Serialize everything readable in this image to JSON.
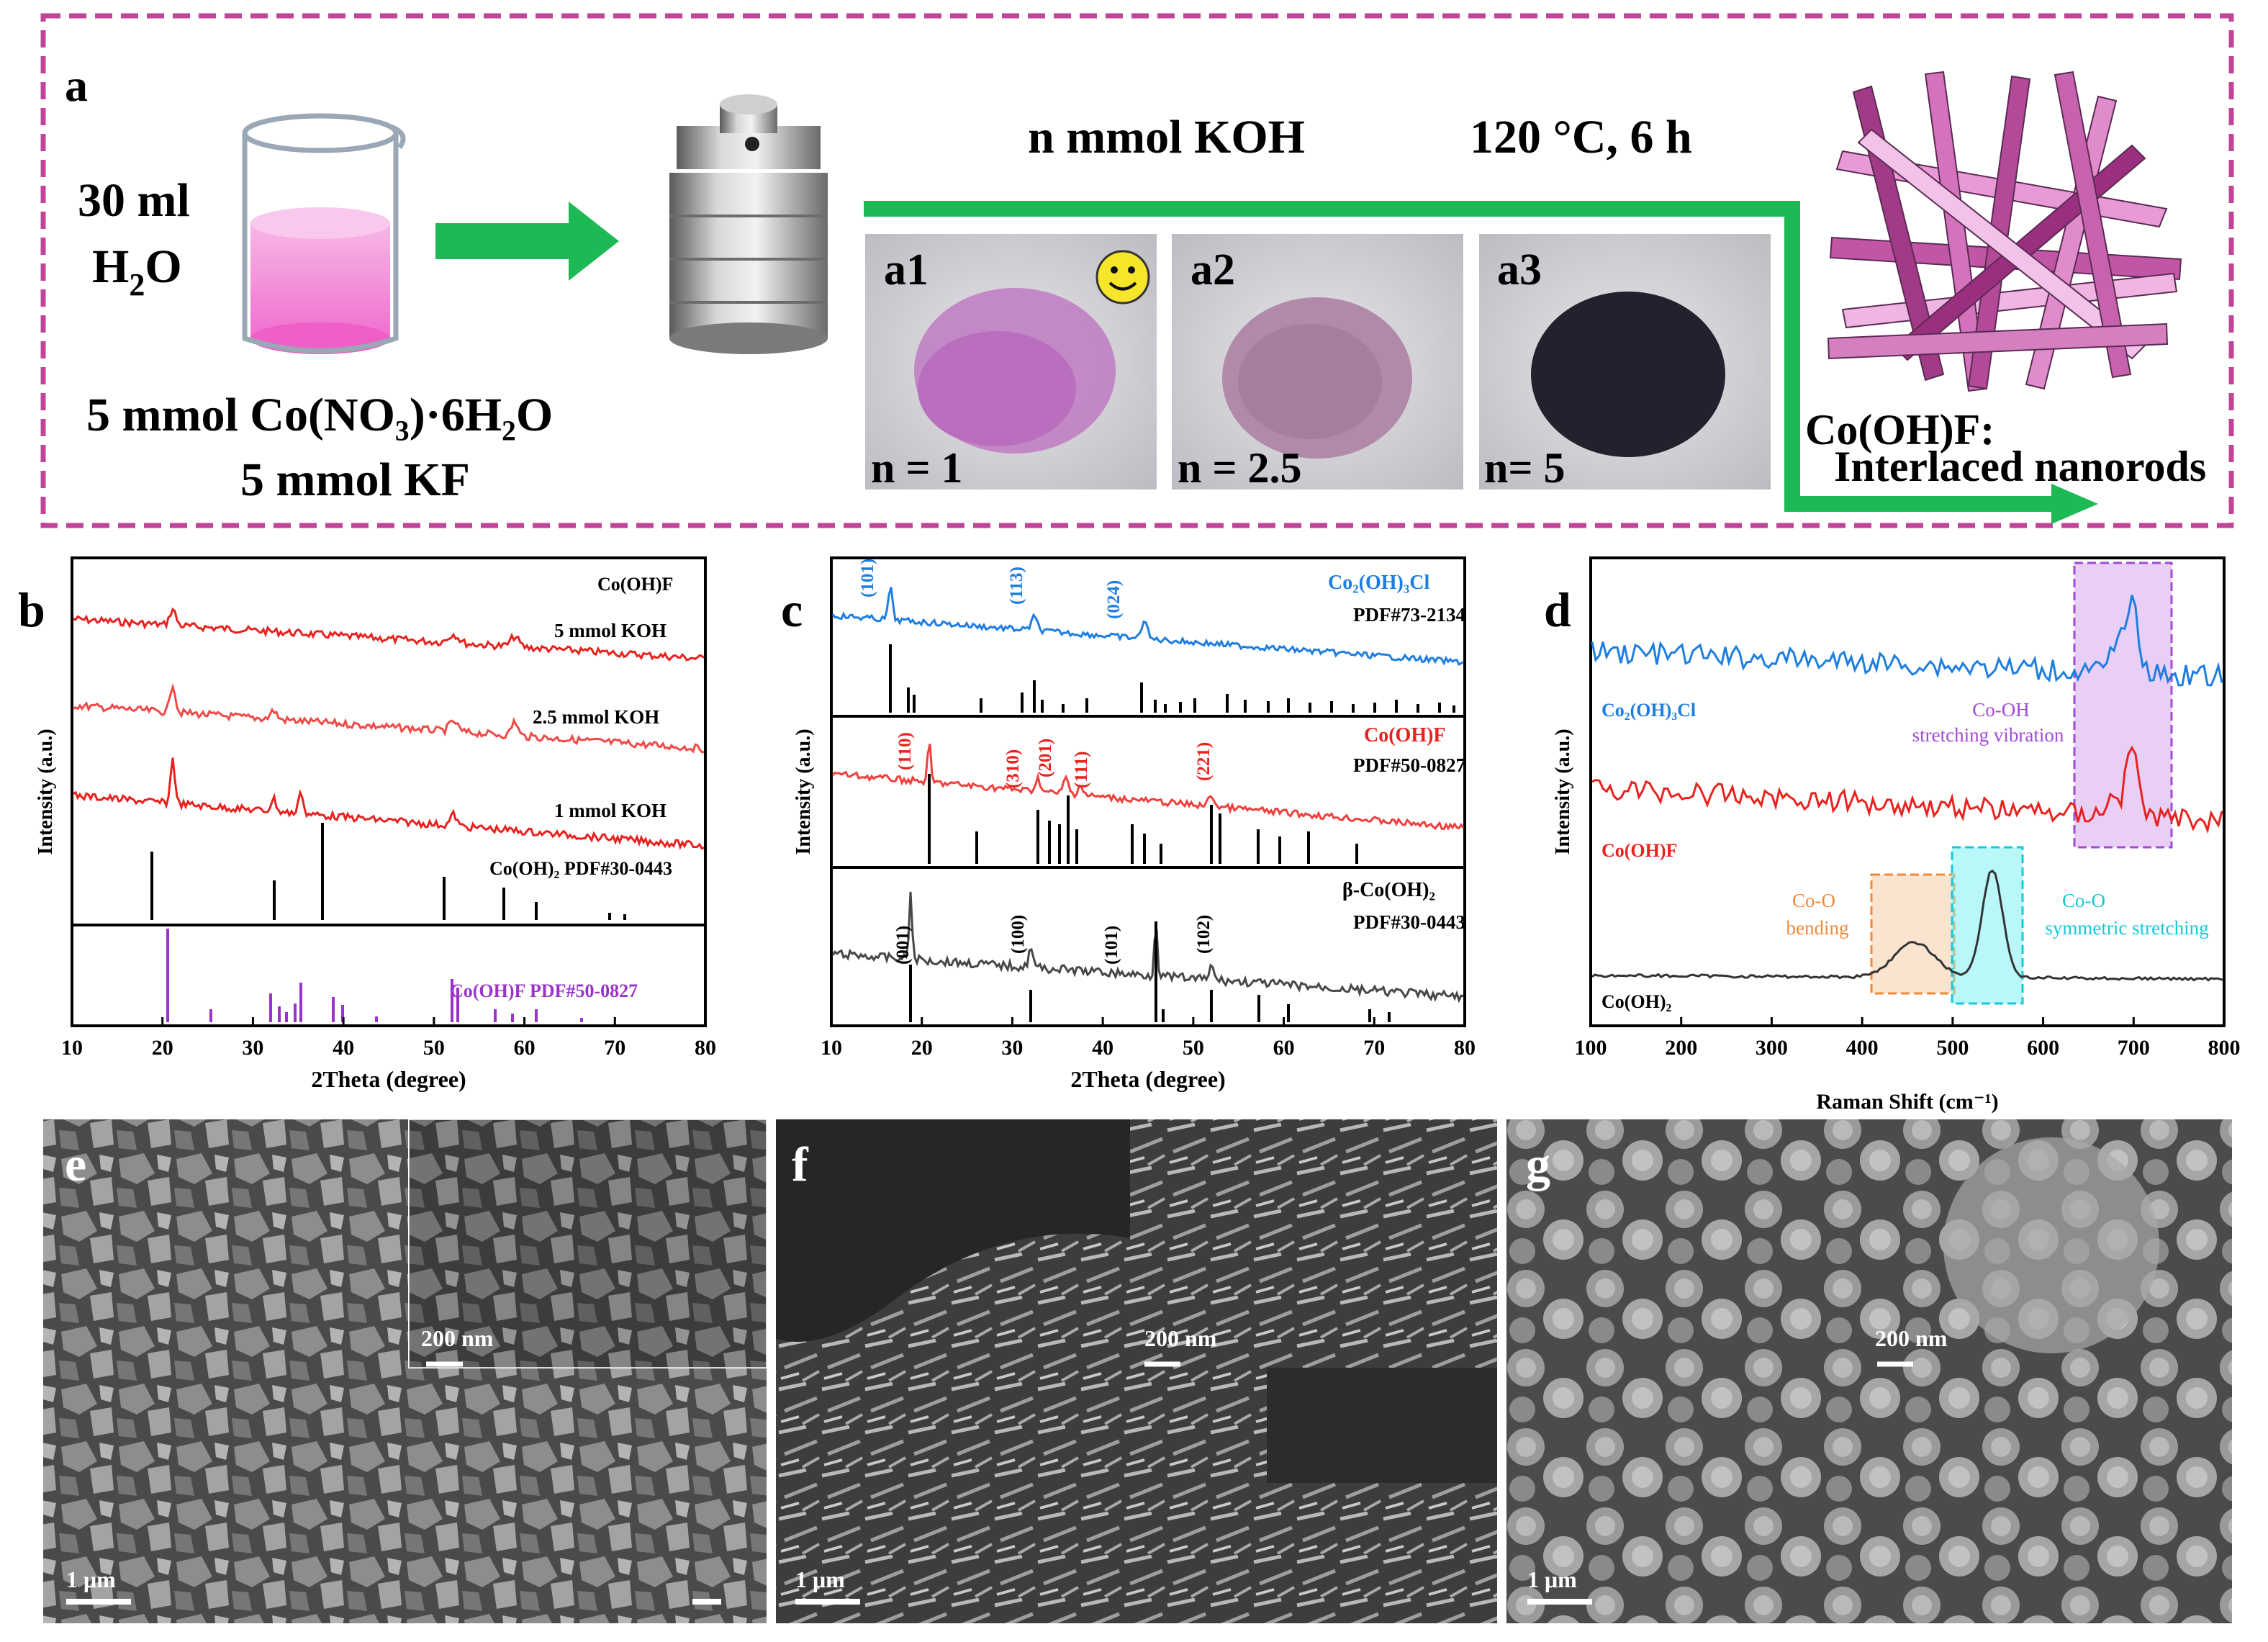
{
  "panel_a": {
    "label": "a",
    "water_line1": "30 ml",
    "water_line2_main": "H",
    "water_line2_sub": "2",
    "water_line2_tail": "O",
    "reagent1": "5 mmol  Co(NO₃)·6H₂O",
    "reagent2": "5 mmol KF",
    "condition_koh": "n mmol KOH",
    "condition_temp": "120 °C, 6 h",
    "photos": [
      {
        "label": "a1",
        "caption": "n = 1",
        "powder_color": "#c07fc4"
      },
      {
        "label": "a2",
        "caption": "n = 2.5",
        "powder_color": "#b08aa8"
      },
      {
        "label": "a3",
        "caption": "n= 5",
        "powder_color": "#25202e"
      }
    ],
    "product_line1": "Co(OH)F:",
    "product_line2": "Interlaced nanorods",
    "colors": {
      "frame": "#c0449a",
      "arrow": "#1db954",
      "smiley": "#f5e62a"
    }
  },
  "panel_b": {
    "label": "b",
    "legend_title": "Co(OH)F",
    "ylabel": "Intensity (a.u.)",
    "xlabel": "2Theta (degree)",
    "xticks": [
      "10",
      "20",
      "30",
      "40",
      "50",
      "60",
      "70",
      "80"
    ],
    "traces": [
      "5 mmol KOH",
      "2.5 mmol KOH",
      "1 mmol KOH"
    ],
    "ref1": "Co(OH)₂ PDF#30-0443",
    "ref2": "Co(OH)F PDF#50-0827",
    "colors": {
      "trace": "#e8221f",
      "trace_light": "#f04a47",
      "ref2": "#9a33c9"
    }
  },
  "panel_c": {
    "label": "c",
    "ylabel": "Intensity (a.u.)",
    "xlabel": "2Theta (degree)",
    "xticks": [
      "10",
      "20",
      "30",
      "40",
      "50",
      "60",
      "70",
      "80"
    ],
    "top_name": "Co₂(OH)₃Cl",
    "top_pdf": "PDF#73-2134",
    "top_peaks": [
      "(101)",
      "(113)",
      "(024)"
    ],
    "mid_name": "Co(OH)F",
    "mid_pdf": "PDF#50-0827",
    "mid_peaks": [
      "(110)",
      "(310)",
      "(201)",
      "(111)",
      "(221)"
    ],
    "bot_name": "β-Co(OH)₂",
    "bot_pdf": "PDF#30-0443",
    "bot_peaks": [
      "(001)",
      "(100)",
      "(101)",
      "(102)"
    ],
    "colors": {
      "blue": "#1e7ee0",
      "red": "#f0403d",
      "gray": "#474747"
    }
  },
  "panel_d": {
    "label": "d",
    "ylabel": "Intensity (a.u.)",
    "xlabel": "Raman Shift (cm⁻¹)",
    "xticks": [
      "100",
      "200",
      "300",
      "400",
      "500",
      "600",
      "700",
      "800"
    ],
    "names": [
      "Co₂(OH)₃Cl",
      "Co(OH)F",
      "Co(OH)₂"
    ],
    "coh_label1": "Co-OH",
    "coh_label2": "stretching vibration",
    "bend_label1": "Co-O",
    "bend_label2": "bending",
    "sym_label1": "Co-O",
    "sym_label2": "symmetric stretching",
    "colors": {
      "blue": "#1e7ee0",
      "red": "#e8221f",
      "purple": "#a24ad6",
      "orange": "#f0893a",
      "cyan": "#17c8d8"
    }
  },
  "panel_e": {
    "label": "e",
    "inset_scale": "200 nm",
    "scale": "1 μm"
  },
  "panel_f": {
    "label": "f",
    "inset_scale": "200 nm",
    "scale": "1 μm"
  },
  "panel_g": {
    "label": "g",
    "inset_scale": "200 nm",
    "scale": "1 μm"
  }
}
